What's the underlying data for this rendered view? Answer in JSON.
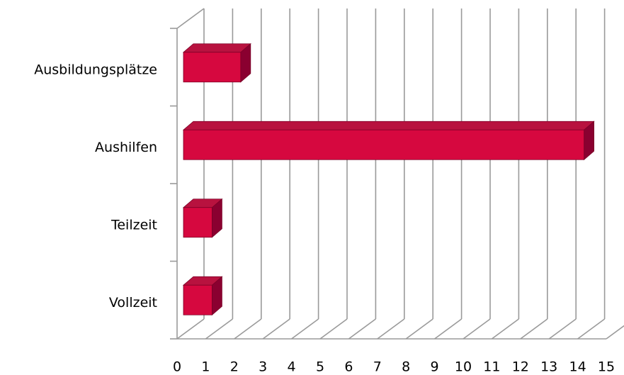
{
  "chart_data": {
    "type": "bar3d",
    "orientation": "horizontal",
    "categories": [
      "Vollzeit",
      "Teilzeit",
      "Aushilfen",
      "Ausbildungsplätze"
    ],
    "values": [
      1,
      1,
      14,
      2
    ],
    "color": "#d6083f",
    "xlim": [
      0,
      15
    ],
    "xticks": [
      0,
      1,
      2,
      3,
      4,
      5,
      6,
      7,
      8,
      9,
      10,
      11,
      12,
      13,
      14,
      15
    ],
    "grid": true
  }
}
